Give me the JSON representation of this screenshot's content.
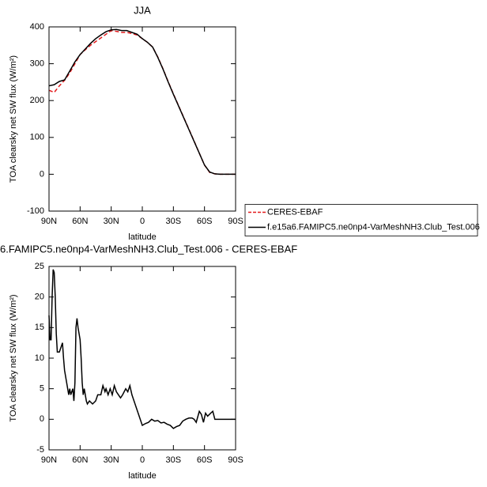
{
  "chart_data": [
    {
      "type": "line",
      "title": "JJA",
      "xlabel": "latitude",
      "ylabel": "TOA clearsky net SW flux (W/m²)",
      "x": [
        90,
        85,
        80,
        75,
        70,
        65,
        60,
        55,
        50,
        45,
        40,
        35,
        30,
        25,
        20,
        15,
        10,
        5,
        0,
        -5,
        -10,
        -15,
        -20,
        -25,
        -30,
        -35,
        -40,
        -45,
        -50,
        -55,
        -60,
        -65,
        -70,
        -75,
        -80,
        -85,
        -90
      ],
      "series": [
        {
          "name": "CERES-EBAF",
          "color": "#e31a1c",
          "dashed": true,
          "values": [
            228,
            222,
            240,
            255,
            275,
            300,
            325,
            338,
            350,
            360,
            370,
            380,
            390,
            388,
            385,
            385,
            382,
            378,
            368,
            358,
            345,
            318,
            286,
            251,
            218,
            186,
            154,
            122,
            90,
            57,
            25,
            5,
            1,
            0,
            0,
            0,
            0
          ]
        },
        {
          "name": "f.e15a6.FAMIPC5.ne0np4-VarMeshNH3.Club_Test.006",
          "color": "#000000",
          "dashed": false,
          "values": [
            240,
            243,
            252,
            256,
            280,
            305,
            325,
            340,
            355,
            368,
            378,
            387,
            392,
            393,
            390,
            390,
            385,
            380,
            368,
            358,
            345,
            317,
            285,
            250,
            217,
            185,
            153,
            121,
            89,
            57,
            25,
            6,
            1,
            0,
            0,
            0,
            0
          ]
        }
      ],
      "xlim": [
        90,
        -90
      ],
      "xticks": [
        {
          "value": 90,
          "label": "90N"
        },
        {
          "value": 60,
          "label": "60N"
        },
        {
          "value": 30,
          "label": "30N"
        },
        0,
        {
          "value": -30,
          "label": "30S"
        },
        {
          "value": -60,
          "label": "60S"
        },
        {
          "value": -90,
          "label": "90S"
        }
      ],
      "ylim": [
        -100,
        400
      ],
      "yticks": [
        -100,
        0,
        100,
        200,
        300,
        400
      ],
      "legend": "right"
    },
    {
      "type": "line",
      "title": "6.FAMIPC5.ne0np4-VarMeshNH3.Club_Test.006 - CERES-EBAF",
      "xlabel": "latitude",
      "ylabel": "TOA clearsky net SW flux (W/m²)",
      "x": [
        90,
        89,
        88,
        87,
        86,
        85,
        84,
        83,
        82,
        80,
        78,
        77,
        76,
        75,
        73,
        71,
        70,
        69,
        67,
        66,
        65,
        64,
        63,
        62,
        60,
        59,
        58,
        57,
        56,
        54,
        53,
        51,
        48,
        45,
        43,
        40,
        38,
        36,
        35,
        33,
        31,
        29,
        27,
        25,
        23,
        21,
        19,
        16,
        14,
        12,
        10,
        8,
        6,
        4,
        2,
        0,
        -3,
        -6,
        -9,
        -12,
        -15,
        -18,
        -21,
        -24,
        -27,
        -30,
        -33,
        -36,
        -39,
        -42,
        -45,
        -48,
        -50,
        -52,
        -55,
        -57,
        -59,
        -61,
        -63,
        -66,
        -68,
        -70,
        -75,
        -80,
        -90
      ],
      "series": [
        {
          "name": null,
          "color": "#000000",
          "dashed": false,
          "values": [
            17,
            13,
            13,
            20,
            24.5,
            24,
            20,
            14,
            11,
            11,
            12,
            12.5,
            10,
            8,
            6,
            4,
            5,
            4,
            5,
            3,
            6,
            15,
            16.5,
            15,
            13,
            10,
            6,
            4,
            5,
            3,
            2.5,
            3,
            2.5,
            3,
            4,
            4,
            5.5,
            4.5,
            5,
            4,
            5,
            4,
            5.5,
            4.5,
            4,
            3.5,
            4,
            5,
            4.5,
            5.5,
            4,
            3,
            2,
            1,
            0,
            -1,
            -0.7,
            -0.5,
            0,
            -0.3,
            -0.2,
            -0.6,
            -0.5,
            -0.8,
            -1,
            -1.5,
            -1.2,
            -1,
            -0.3,
            0,
            0.2,
            0.2,
            0,
            -0.5,
            1.3,
            0.8,
            -0.5,
            1,
            0.5,
            1,
            1.3,
            0,
            0,
            0,
            0
          ]
        }
      ],
      "xlim": [
        90,
        -90
      ],
      "xticks": [
        {
          "value": 90,
          "label": "90N"
        },
        {
          "value": 60,
          "label": "60N"
        },
        {
          "value": 30,
          "label": "30N"
        },
        0,
        {
          "value": -30,
          "label": "30S"
        },
        {
          "value": -60,
          "label": "60S"
        },
        {
          "value": -90,
          "label": "90S"
        }
      ],
      "ylim": [
        -5,
        25
      ],
      "yticks": [
        -5,
        0,
        5,
        10,
        15,
        20,
        25
      ]
    }
  ]
}
